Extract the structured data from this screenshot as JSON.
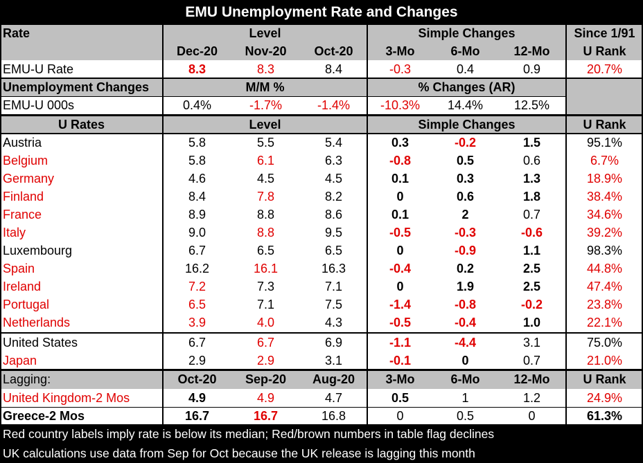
{
  "chart_data": {
    "type": "table",
    "title": "EMU Unemployment Rate and Changes",
    "rate_section": {
      "headers": {
        "col1": "Rate",
        "level": "Level",
        "simple": "Simple Changes",
        "since": "Since 1/91"
      },
      "subheaders": [
        "Dec-20",
        "Nov-20",
        "Oct-20",
        "3-Mo",
        "6-Mo",
        "12-Mo",
        "U Rank"
      ],
      "row": {
        "label": "EMU-U Rate",
        "values": [
          "8.3",
          "8.3",
          "8.4",
          "-0.3",
          "0.4",
          "0.9",
          "20.7%"
        ]
      }
    },
    "changes_section": {
      "headers": {
        "col1": "Unemployment Changes",
        "mm": "M/M %",
        "pct": "% Changes (AR)"
      },
      "row": {
        "label": "EMU-U 000s",
        "values": [
          "0.4%",
          "-1.7%",
          "-1.4%",
          "-10.3%",
          "14.4%",
          "12.5%"
        ]
      }
    },
    "urates_section": {
      "headers": {
        "col1": "U Rates",
        "level": "Level",
        "simple": "Simple Changes",
        "rank": "U Rank"
      },
      "rows": [
        {
          "label": "Austria",
          "values": [
            "5.8",
            "5.5",
            "5.4",
            "0.3",
            "-0.2",
            "1.5",
            "95.1%"
          ]
        },
        {
          "label": "Belgium",
          "values": [
            "5.8",
            "6.1",
            "6.3",
            "-0.8",
            "0.5",
            "0.6",
            "6.7%"
          ]
        },
        {
          "label": "Germany",
          "values": [
            "4.6",
            "4.5",
            "4.5",
            "0.1",
            "0.3",
            "1.3",
            "18.9%"
          ]
        },
        {
          "label": "Finland",
          "values": [
            "8.4",
            "7.8",
            "8.2",
            "0",
            "0.6",
            "1.8",
            "38.4%"
          ]
        },
        {
          "label": "France",
          "values": [
            "8.9",
            "8.8",
            "8.6",
            "0.1",
            "2",
            "0.7",
            "34.6%"
          ]
        },
        {
          "label": "Italy",
          "values": [
            "9.0",
            "8.8",
            "9.5",
            "-0.5",
            "-0.3",
            "-0.6",
            "39.2%"
          ]
        },
        {
          "label": "Luxembourg",
          "values": [
            "6.7",
            "6.5",
            "6.5",
            "0",
            "-0.9",
            "1.1",
            "98.3%"
          ]
        },
        {
          "label": "Spain",
          "values": [
            "16.2",
            "16.1",
            "16.3",
            "-0.4",
            "0.2",
            "2.5",
            "44.8%"
          ]
        },
        {
          "label": "Ireland",
          "values": [
            "7.2",
            "7.3",
            "7.1",
            "0",
            "1.9",
            "2.5",
            "47.4%"
          ]
        },
        {
          "label": "Portugal",
          "values": [
            "6.5",
            "7.1",
            "7.5",
            "-1.4",
            "-0.8",
            "-0.2",
            "23.8%"
          ]
        },
        {
          "label": "Netherlands",
          "values": [
            "3.9",
            "4.0",
            "4.3",
            "-0.5",
            "-0.4",
            "1.0",
            "22.1%"
          ]
        }
      ],
      "other_rows": [
        {
          "label": "United States",
          "values": [
            "6.7",
            "6.7",
            "6.9",
            "-1.1",
            "-4.4",
            "3.1",
            "75.0%"
          ]
        },
        {
          "label": "Japan",
          "values": [
            "2.9",
            "2.9",
            "3.1",
            "-0.1",
            "0",
            "0.7",
            "21.0%"
          ]
        }
      ]
    },
    "lagging_section": {
      "headers": [
        "Lagging:",
        "Oct-20",
        "Sep-20",
        "Aug-20",
        "3-Mo",
        "6-Mo",
        "12-Mo",
        "U Rank"
      ],
      "rows": [
        {
          "label": "United Kingdom-2 Mos",
          "values": [
            "4.9",
            "4.9",
            "4.7",
            "0.5",
            "1",
            "1.2",
            "24.9%"
          ]
        },
        {
          "label": "Greece-2 Mos",
          "values": [
            "16.7",
            "16.7",
            "16.8",
            "0",
            "0.5",
            "0",
            "61.3%"
          ]
        }
      ]
    },
    "footnotes": [
      "Red country labels imply rate is below its median; Red/brown numbers in table flag declines",
      "UK calculations use data from Sep for Oct because the UK release is lagging this month"
    ]
  },
  "colors": {
    "red": "#e00000",
    "header_bg": "#c0c0c0",
    "title_bg": "#000000"
  }
}
